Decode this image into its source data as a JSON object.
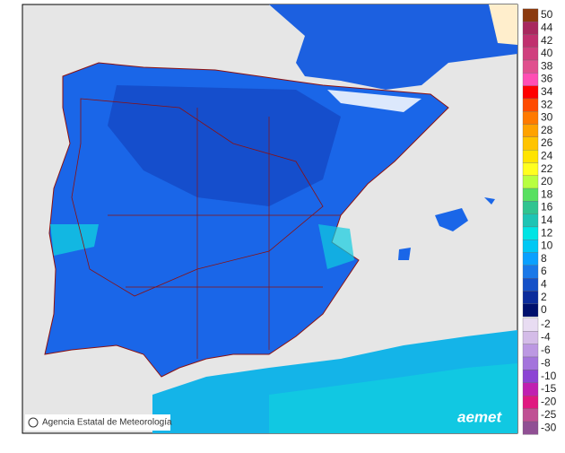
{
  "map": {
    "credit": "Agencia Estatal de Meteorología",
    "logo": "aemet",
    "legend": {
      "labels": [
        50,
        44,
        42,
        40,
        38,
        36,
        34,
        32,
        30,
        28,
        26,
        24,
        22,
        20,
        18,
        16,
        14,
        12,
        10,
        8,
        6,
        4,
        2,
        0
      ],
      "colors": [
        "#8b3a0f",
        "#a8285e",
        "#c0306e",
        "#d0407e",
        "#e0508e",
        "#ff4eb4",
        "#ff0000",
        "#ff4a00",
        "#ff7a00",
        "#ffa200",
        "#ffc400",
        "#ffe400",
        "#ffff20",
        "#b8ff40",
        "#58e060",
        "#30c490",
        "#1ec4b4",
        "#00e4e4",
        "#00c8f4",
        "#0aa0ff",
        "#1a78e8",
        "#1450c8",
        "#0c2c9c",
        "#00106e"
      ],
      "negative_labels": [
        -2,
        -4,
        -6,
        -8,
        -10,
        -15,
        -20,
        -25,
        -30
      ],
      "negative_colors": [
        "#e8dcf2",
        "#d4bce8",
        "#bc98e2",
        "#a474dc",
        "#8c44d4",
        "#c020b0",
        "#e01880",
        "#c05094",
        "#905094"
      ]
    }
  }
}
